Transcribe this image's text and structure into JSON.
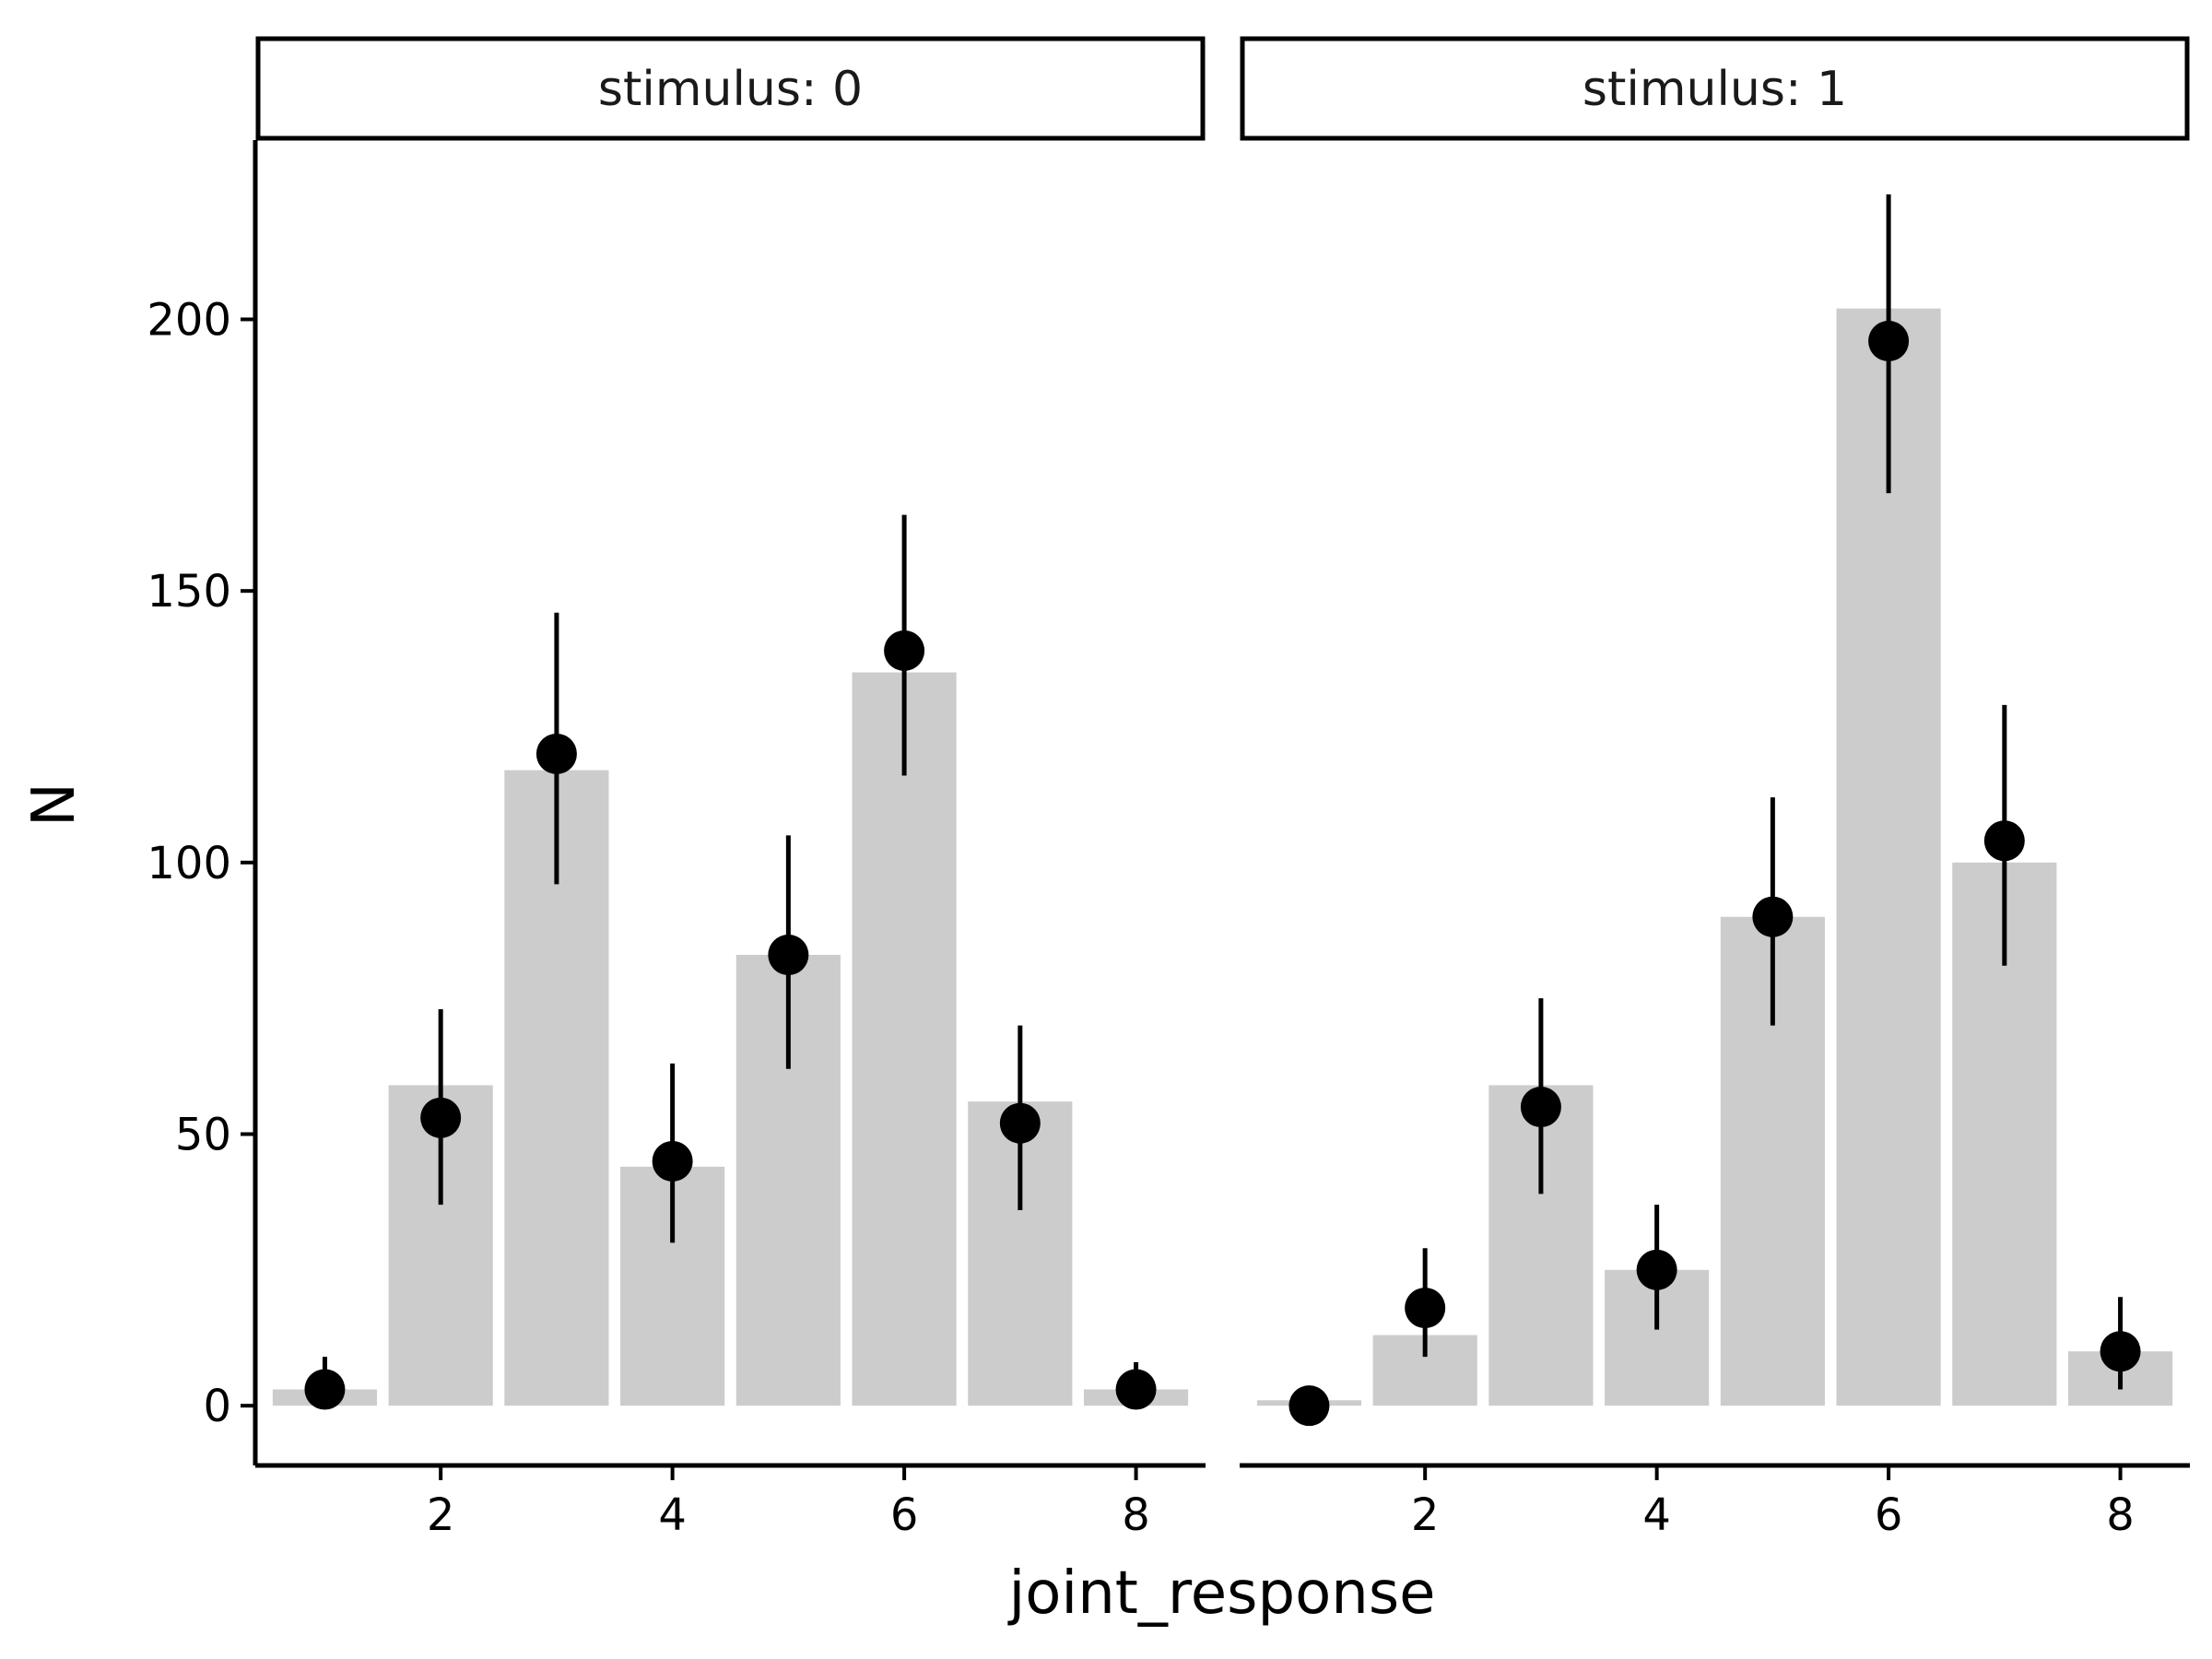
{
  "chart_data": {
    "type": "bar",
    "xlabel": "joint_response",
    "ylabel": "N",
    "x_ticks": [
      2,
      4,
      6,
      8
    ],
    "y_ticks": [
      0,
      50,
      100,
      150,
      200
    ],
    "ylim": [
      -11,
      233
    ],
    "xlim": [
      0.4,
      8.6
    ],
    "grid": false,
    "colors": {
      "bar": "#cccccc",
      "point": "#000000"
    },
    "panels": [
      {
        "label": "stimulus: 0",
        "x": [
          1,
          2,
          3,
          4,
          5,
          6,
          7,
          8
        ],
        "bar_values": [
          3,
          59,
          117,
          44,
          83,
          135,
          56,
          3
        ],
        "point_values": [
          3,
          53,
          120,
          45,
          83,
          139,
          52,
          3
        ],
        "error_low": [
          0,
          37,
          96,
          30,
          62,
          116,
          36,
          0
        ],
        "error_high": [
          9,
          73,
          146,
          63,
          105,
          164,
          70,
          8
        ]
      },
      {
        "label": "stimulus: 1",
        "x": [
          1,
          2,
          3,
          4,
          5,
          6,
          7,
          8
        ],
        "bar_values": [
          1,
          13,
          59,
          25,
          90,
          202,
          100,
          10
        ],
        "point_values": [
          0,
          18,
          55,
          25,
          90,
          196,
          104,
          10
        ],
        "error_low": [
          0,
          9,
          39,
          14,
          70,
          168,
          81,
          3
        ],
        "error_high": [
          0,
          29,
          75,
          37,
          112,
          223,
          129,
          20
        ]
      }
    ]
  }
}
